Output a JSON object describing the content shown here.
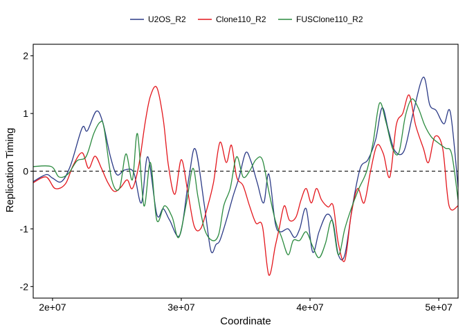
{
  "chart_data": {
    "type": "line",
    "title": "",
    "xlabel": "Coordinate",
    "ylabel": "Replication Timing",
    "xlim": [
      18500000,
      51500000
    ],
    "ylim": [
      -2.2,
      2.2
    ],
    "x_ticks": [
      20000000,
      30000000,
      40000000,
      50000000
    ],
    "x_tick_labels": [
      "2e+07",
      "3e+07",
      "4e+07",
      "5e+07"
    ],
    "y_ticks": [
      -2,
      -1,
      0,
      1,
      2
    ],
    "y_tick_labels": [
      "-2",
      "-1",
      "0",
      "1",
      "2"
    ],
    "grid": false,
    "legend_position": "top",
    "reference_line": {
      "y": 0,
      "style": "dashed"
    },
    "series": [
      {
        "name": "U2OS_R2",
        "color": "#2b3a86",
        "x": [
          18500000,
          19500000,
          20000000,
          20700000,
          21400000,
          22300000,
          22700000,
          23400000,
          23900000,
          24500000,
          25000000,
          25600000,
          26300000,
          26900000,
          27400000,
          28100000,
          28600000,
          29100000,
          29900000,
          30600000,
          31100000,
          31800000,
          32300000,
          32700000,
          33000000,
          33500000,
          34000000,
          34500000,
          35000000,
          35400000,
          35900000,
          36400000,
          36800000,
          37300000,
          37700000,
          38300000,
          38800000,
          39200000,
          39700000,
          40200000,
          40700000,
          41300000,
          41800000,
          42200000,
          42700000,
          43300000,
          43900000,
          44500000,
          45100000,
          45600000,
          46100000,
          46600000,
          47300000,
          48000000,
          48800000,
          49300000,
          49800000,
          50400000,
          50900000,
          51500000
        ],
        "values": [
          -0.18,
          -0.06,
          -0.12,
          -0.18,
          0.1,
          0.75,
          0.7,
          1.04,
          0.85,
          0.25,
          -0.06,
          0.02,
          -0.02,
          -0.55,
          0.25,
          -0.75,
          -0.65,
          -0.85,
          -1.1,
          -0.1,
          0.38,
          -0.6,
          -1.38,
          -1.27,
          -1.2,
          -0.85,
          -0.45,
          -0.1,
          0.32,
          0.18,
          -0.2,
          -0.55,
          -0.05,
          -0.9,
          -1.05,
          -1.0,
          -1.15,
          -1.0,
          -0.65,
          -1.4,
          -1.05,
          -0.75,
          -0.9,
          -1.45,
          -1.45,
          -0.6,
          0.05,
          0.2,
          0.55,
          1.1,
          0.7,
          0.35,
          0.35,
          1.0,
          1.63,
          1.15,
          1.05,
          0.82,
          1.02,
          -0.28
        ]
      },
      {
        "name": "Clone110_R2",
        "color": "#e3151b",
        "x": [
          18500000,
          19500000,
          20200000,
          21000000,
          21600000,
          22300000,
          22800000,
          23300000,
          23800000,
          24300000,
          24800000,
          25300000,
          25800000,
          26200000,
          26700000,
          27200000,
          27600000,
          28100000,
          28600000,
          29000000,
          29500000,
          30000000,
          30500000,
          31000000,
          31500000,
          32000000,
          32500000,
          33000000,
          33500000,
          33900000,
          34300000,
          34800000,
          35300000,
          35800000,
          36300000,
          36800000,
          37300000,
          37600000,
          38000000,
          38400000,
          38900000,
          39300000,
          39700000,
          40100000,
          40500000,
          40900000,
          41400000,
          41800000,
          42200000,
          42700000,
          43200000,
          43700000,
          44200000,
          44700000,
          45200000,
          45700000,
          46200000,
          46700000,
          47200000,
          47700000,
          48200000,
          48800000,
          49200000,
          49700000,
          50300000,
          50800000,
          51500000
        ],
        "values": [
          -0.2,
          -0.1,
          -0.3,
          -0.22,
          0.1,
          0.32,
          0.05,
          0.26,
          0.05,
          -0.2,
          -0.35,
          -0.28,
          -0.15,
          -0.3,
          0.1,
          0.85,
          1.3,
          1.45,
          0.9,
          0.1,
          -0.4,
          0.2,
          -0.35,
          -0.95,
          -1.0,
          -0.65,
          -0.2,
          0.5,
          0.15,
          0.45,
          -0.1,
          -0.25,
          -0.6,
          -0.9,
          -0.95,
          -1.8,
          -1.3,
          -1.0,
          -0.6,
          -0.85,
          -0.8,
          -0.5,
          -0.3,
          -0.55,
          -0.3,
          -0.5,
          -0.62,
          -0.6,
          -1.25,
          -1.55,
          -0.75,
          -0.3,
          -0.55,
          0.0,
          0.45,
          0.3,
          -0.1,
          0.8,
          1.0,
          1.32,
          0.8,
          0.4,
          0.15,
          0.6,
          0.4,
          -0.6,
          -0.6
        ]
      },
      {
        "name": "FUSClone110_R2",
        "color": "#2a8a3e",
        "x": [
          18500000,
          19900000,
          20500000,
          21200000,
          21900000,
          22600000,
          23200000,
          23700000,
          24000000,
          24600000,
          25200000,
          25700000,
          26200000,
          26600000,
          27100000,
          27600000,
          28100000,
          28700000,
          29300000,
          29800000,
          30400000,
          30900000,
          31300000,
          31800000,
          32400000,
          32900000,
          33300000,
          33800000,
          34300000,
          34800000,
          35300000,
          35800000,
          36300000,
          36800000,
          37300000,
          37800000,
          38300000,
          38700000,
          39200000,
          39700000,
          40200000,
          40700000,
          41200000,
          41700000,
          42200000,
          42700000,
          43200000,
          43800000,
          44400000,
          44900000,
          45400000,
          45900000,
          46400000,
          46900000,
          47400000,
          47900000,
          48400000,
          48900000,
          49400000,
          49900000,
          50500000,
          51000000,
          51500000
        ],
        "values": [
          0.08,
          0.08,
          -0.1,
          -0.05,
          0.18,
          0.25,
          0.65,
          0.85,
          0.75,
          -0.15,
          -0.3,
          0.3,
          -0.15,
          0.65,
          -0.6,
          0.15,
          -0.85,
          -0.6,
          -0.8,
          -1.15,
          -0.55,
          0.05,
          -0.45,
          -1.0,
          -1.2,
          -1.1,
          -0.6,
          -0.3,
          0.25,
          -0.1,
          0.0,
          0.2,
          0.2,
          -0.35,
          -0.85,
          -1.15,
          -1.45,
          -1.2,
          -1.2,
          -1.05,
          -1.3,
          -1.5,
          -1.25,
          -0.85,
          -1.45,
          -1.0,
          -0.65,
          -0.3,
          0.0,
          0.5,
          1.18,
          0.85,
          0.4,
          0.32,
          0.95,
          1.25,
          1.1,
          0.8,
          0.6,
          0.5,
          0.4,
          0.3,
          -0.5
        ]
      }
    ]
  }
}
